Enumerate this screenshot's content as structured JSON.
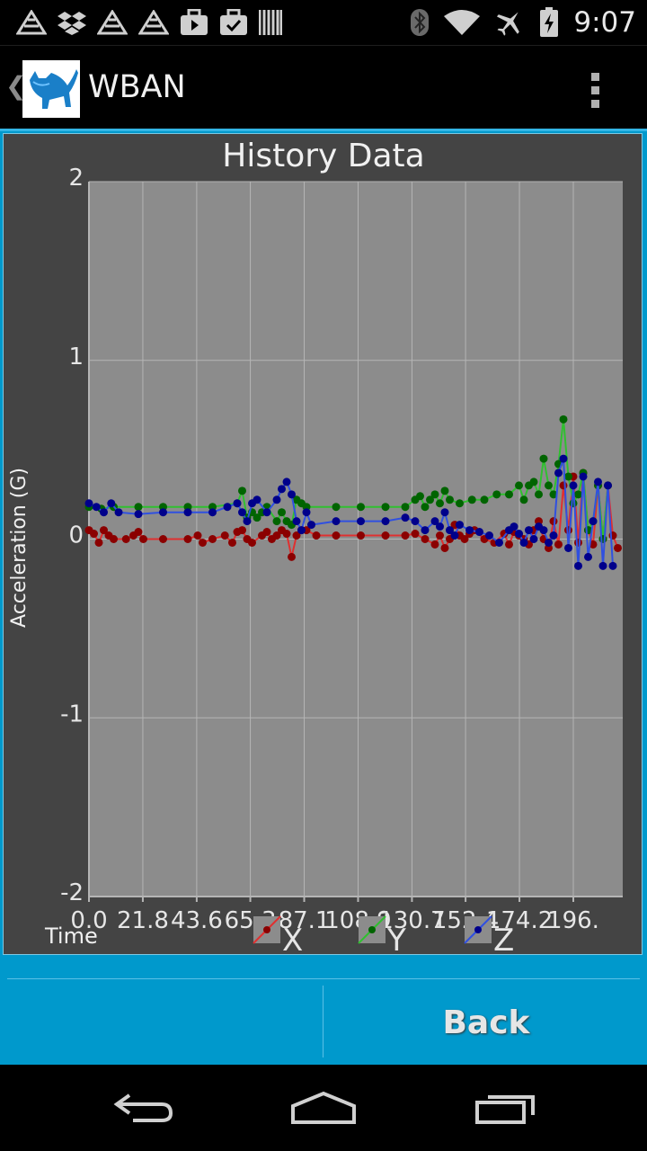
{
  "status_bar": {
    "time": "9:07",
    "notification_icons": [
      "app-triangle-icon",
      "dropbox-icon",
      "app-triangle-icon",
      "app-triangle-icon",
      "briefcase-play-icon",
      "briefcase-check-icon",
      "barcode-icon"
    ],
    "system_icons": [
      "bluetooth-icon",
      "wifi-icon",
      "airplane-mode-icon",
      "battery-charging-icon"
    ]
  },
  "action_bar": {
    "title": "WBAN",
    "app_icon": "cat-logo-icon",
    "overflow_icon": "overflow-menu-icon"
  },
  "footer": {
    "back_label": "Back",
    "left_label": ""
  },
  "chart_data": {
    "type": "line",
    "title": "History Data",
    "xlabel": "Time",
    "ylabel": "Acceleration (G)",
    "xlim": [
      0,
      216
    ],
    "ylim": [
      -2,
      2
    ],
    "x_ticks": [
      0,
      21.8,
      43.6,
      65.3,
      87.1,
      108.9,
      130.7,
      152.4,
      174.2,
      196.0
    ],
    "x_tick_labels": [
      "0.0",
      "21.8",
      "43.6",
      "65.3",
      "87.1",
      "108.9",
      "130.7",
      "152.4",
      "174.2",
      "196."
    ],
    "y_ticks": [
      2,
      1,
      0,
      -1,
      -2
    ],
    "y_tick_labels": [
      "2",
      "1",
      "0",
      "-1",
      "-2"
    ],
    "colors": {
      "background": "#444444",
      "plot_area": "#8c8c8c",
      "grid": "#b5b5b5",
      "axis_text": "#e6e6e6"
    },
    "legend": {
      "placement": "bottom"
    },
    "series": [
      {
        "name": "X",
        "color": "#8b0000",
        "legend_color": "#e03030",
        "points": [
          [
            0,
            0.05
          ],
          [
            2,
            0.03
          ],
          [
            4,
            -0.02
          ],
          [
            6,
            0.05
          ],
          [
            8,
            0.02
          ],
          [
            10,
            0.0
          ],
          [
            15,
            0.0
          ],
          [
            18,
            0.02
          ],
          [
            20,
            0.04
          ],
          [
            22,
            0.0
          ],
          [
            30,
            0.0
          ],
          [
            40,
            0.0
          ],
          [
            44,
            0.02
          ],
          [
            46,
            -0.02
          ],
          [
            50,
            0.0
          ],
          [
            55,
            0.02
          ],
          [
            58,
            -0.02
          ],
          [
            60,
            0.04
          ],
          [
            62,
            0.05
          ],
          [
            64,
            0.0
          ],
          [
            66,
            -0.02
          ],
          [
            70,
            0.02
          ],
          [
            72,
            0.04
          ],
          [
            74,
            0.0
          ],
          [
            76,
            0.02
          ],
          [
            78,
            0.05
          ],
          [
            80,
            0.03
          ],
          [
            82,
            -0.1
          ],
          [
            84,
            0.02
          ],
          [
            86,
            0.05
          ],
          [
            88,
            0.05
          ],
          [
            92,
            0.02
          ],
          [
            100,
            0.02
          ],
          [
            110,
            0.02
          ],
          [
            120,
            0.02
          ],
          [
            128,
            0.02
          ],
          [
            132,
            0.03
          ],
          [
            136,
            0.0
          ],
          [
            140,
            -0.03
          ],
          [
            142,
            0.02
          ],
          [
            144,
            -0.05
          ],
          [
            146,
            0.0
          ],
          [
            148,
            0.08
          ],
          [
            150,
            0.02
          ],
          [
            152,
            0.0
          ],
          [
            154,
            0.03
          ],
          [
            156,
            0.05
          ],
          [
            160,
            0.0
          ],
          [
            164,
            -0.02
          ],
          [
            168,
            0.03
          ],
          [
            170,
            -0.03
          ],
          [
            172,
            0.04
          ],
          [
            174,
            0.02
          ],
          [
            176,
            0.0
          ],
          [
            178,
            -0.03
          ],
          [
            180,
            0.05
          ],
          [
            182,
            0.1
          ],
          [
            184,
            0.0
          ],
          [
            186,
            -0.05
          ],
          [
            188,
            0.1
          ],
          [
            190,
            -0.03
          ],
          [
            192,
            0.3
          ],
          [
            194,
            0.05
          ],
          [
            196,
            0.35
          ],
          [
            198,
            -0.02
          ],
          [
            200,
            0.37
          ],
          [
            202,
            0.05
          ],
          [
            204,
            -0.03
          ],
          [
            206,
            0.3
          ],
          [
            208,
            0.0
          ],
          [
            210,
            0.3
          ],
          [
            212,
            0.02
          ],
          [
            214,
            -0.05
          ]
        ]
      },
      {
        "name": "Y",
        "color": "#006400",
        "legend_color": "#30c030",
        "points": [
          [
            0,
            0.18
          ],
          [
            5,
            0.17
          ],
          [
            10,
            0.18
          ],
          [
            20,
            0.18
          ],
          [
            30,
            0.18
          ],
          [
            40,
            0.18
          ],
          [
            50,
            0.18
          ],
          [
            60,
            0.2
          ],
          [
            62,
            0.27
          ],
          [
            64,
            0.12
          ],
          [
            66,
            0.15
          ],
          [
            68,
            0.12
          ],
          [
            70,
            0.15
          ],
          [
            72,
            0.18
          ],
          [
            76,
            0.1
          ],
          [
            78,
            0.15
          ],
          [
            80,
            0.1
          ],
          [
            82,
            0.08
          ],
          [
            84,
            0.22
          ],
          [
            86,
            0.2
          ],
          [
            88,
            0.18
          ],
          [
            100,
            0.18
          ],
          [
            110,
            0.18
          ],
          [
            120,
            0.18
          ],
          [
            128,
            0.18
          ],
          [
            132,
            0.22
          ],
          [
            134,
            0.24
          ],
          [
            136,
            0.18
          ],
          [
            138,
            0.22
          ],
          [
            140,
            0.25
          ],
          [
            142,
            0.2
          ],
          [
            144,
            0.27
          ],
          [
            146,
            0.22
          ],
          [
            150,
            0.2
          ],
          [
            155,
            0.22
          ],
          [
            160,
            0.22
          ],
          [
            165,
            0.25
          ],
          [
            170,
            0.25
          ],
          [
            174,
            0.3
          ],
          [
            176,
            0.22
          ],
          [
            178,
            0.3
          ],
          [
            180,
            0.32
          ],
          [
            182,
            0.25
          ],
          [
            184,
            0.45
          ],
          [
            186,
            0.3
          ],
          [
            188,
            0.25
          ],
          [
            190,
            0.42
          ],
          [
            192,
            0.67
          ],
          [
            194,
            0.35
          ],
          [
            196,
            0.2
          ],
          [
            198,
            0.25
          ],
          [
            200,
            0.37
          ],
          [
            202,
            0.05
          ],
          [
            204,
            0.1
          ],
          [
            206,
            0.3
          ],
          [
            208,
            0.0
          ],
          [
            210,
            0.3
          ]
        ]
      },
      {
        "name": "Z",
        "color": "#00008b",
        "legend_color": "#3050e0",
        "points": [
          [
            0,
            0.2
          ],
          [
            3,
            0.18
          ],
          [
            6,
            0.15
          ],
          [
            9,
            0.2
          ],
          [
            12,
            0.15
          ],
          [
            20,
            0.14
          ],
          [
            30,
            0.15
          ],
          [
            40,
            0.15
          ],
          [
            50,
            0.15
          ],
          [
            56,
            0.18
          ],
          [
            60,
            0.2
          ],
          [
            62,
            0.15
          ],
          [
            64,
            0.1
          ],
          [
            66,
            0.2
          ],
          [
            68,
            0.22
          ],
          [
            72,
            0.15
          ],
          [
            76,
            0.22
          ],
          [
            78,
            0.28
          ],
          [
            80,
            0.32
          ],
          [
            82,
            0.25
          ],
          [
            84,
            0.1
          ],
          [
            86,
            0.05
          ],
          [
            88,
            0.15
          ],
          [
            90,
            0.08
          ],
          [
            100,
            0.1
          ],
          [
            110,
            0.1
          ],
          [
            120,
            0.1
          ],
          [
            128,
            0.12
          ],
          [
            132,
            0.1
          ],
          [
            136,
            0.05
          ],
          [
            140,
            0.1
          ],
          [
            142,
            0.07
          ],
          [
            144,
            0.15
          ],
          [
            146,
            0.05
          ],
          [
            148,
            0.02
          ],
          [
            150,
            0.08
          ],
          [
            154,
            0.05
          ],
          [
            158,
            0.04
          ],
          [
            162,
            0.02
          ],
          [
            166,
            -0.02
          ],
          [
            170,
            0.05
          ],
          [
            172,
            0.07
          ],
          [
            174,
            0.03
          ],
          [
            176,
            -0.02
          ],
          [
            178,
            0.05
          ],
          [
            180,
            0.0
          ],
          [
            182,
            0.07
          ],
          [
            184,
            0.05
          ],
          [
            186,
            -0.02
          ],
          [
            188,
            0.02
          ],
          [
            190,
            0.37
          ],
          [
            192,
            0.45
          ],
          [
            194,
            -0.05
          ],
          [
            196,
            0.3
          ],
          [
            198,
            -0.15
          ],
          [
            200,
            0.35
          ],
          [
            202,
            -0.1
          ],
          [
            204,
            0.1
          ],
          [
            206,
            0.32
          ],
          [
            208,
            -0.15
          ],
          [
            210,
            0.3
          ],
          [
            212,
            -0.15
          ]
        ]
      }
    ]
  }
}
